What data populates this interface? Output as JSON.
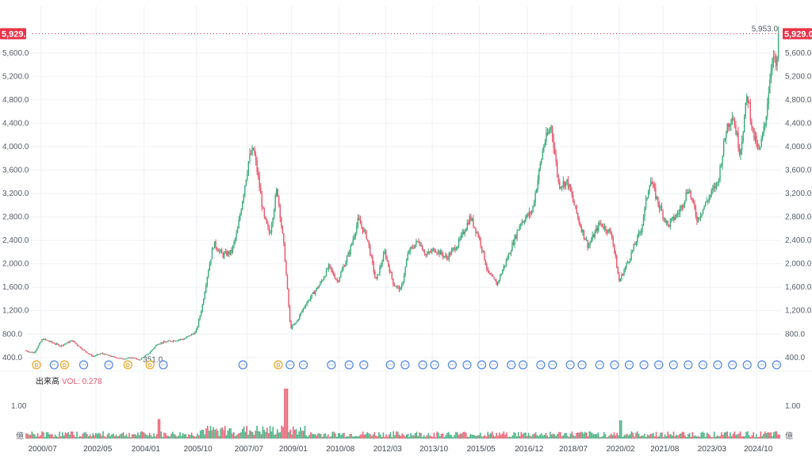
{
  "chart_data": {
    "type": "candlestick",
    "price_axis": {
      "ticks": [
        "400.0",
        "800.0",
        "1,200.0",
        "1,600.0",
        "2,000.0",
        "2,400.0",
        "2,800.0",
        "3,200.0",
        "3,600.0",
        "4,000.0",
        "4,400.0",
        "4,800.0",
        "5,200.0",
        "5,600.0"
      ],
      "tick_values": [
        400,
        800,
        1200,
        1600,
        2000,
        2400,
        2800,
        3200,
        3600,
        4000,
        4400,
        4800,
        5200,
        5600
      ],
      "ylim": [
        330,
        6030
      ]
    },
    "current_price_label": "5,929.0",
    "current_price": 5929.0,
    "high_annotation": "5,953.0",
    "high_value": 5953.0,
    "low_annotation": "351.0",
    "low_value": 351.0,
    "x_ticks": [
      "2000/07",
      "2002/05",
      "2004/01",
      "2005/10",
      "2007/07",
      "2009/01",
      "2010/08",
      "2012/03",
      "2013/10",
      "2015/05",
      "2016/12",
      "2018/07",
      "2020/02",
      "2021/08",
      "2023/03",
      "2024/10"
    ],
    "x_tick_years": [
      2000.5,
      2002.37,
      2004.0,
      2005.77,
      2007.5,
      2009.0,
      2010.6,
      2012.2,
      2013.77,
      2015.37,
      2017.0,
      2018.5,
      2020.1,
      2021.6,
      2023.2,
      2024.77
    ],
    "xlim": [
      2000.0,
      2025.6
    ],
    "price_keypoints": [
      [
        2000.0,
        520
      ],
      [
        2000.3,
        480
      ],
      [
        2000.6,
        720
      ],
      [
        2001.0,
        640
      ],
      [
        2001.2,
        600
      ],
      [
        2001.6,
        690
      ],
      [
        2002.0,
        520
      ],
      [
        2002.3,
        420
      ],
      [
        2002.6,
        470
      ],
      [
        2003.0,
        410
      ],
      [
        2003.3,
        380
      ],
      [
        2003.7,
        400
      ],
      [
        2003.85,
        351
      ],
      [
        2004.2,
        470
      ],
      [
        2004.5,
        640
      ],
      [
        2004.9,
        680
      ],
      [
        2005.4,
        720
      ],
      [
        2005.8,
        840
      ],
      [
        2006.0,
        1250
      ],
      [
        2006.2,
        1850
      ],
      [
        2006.4,
        2350
      ],
      [
        2006.7,
        2150
      ],
      [
        2007.0,
        2200
      ],
      [
        2007.2,
        2550
      ],
      [
        2007.6,
        3800
      ],
      [
        2007.75,
        3950
      ],
      [
        2007.9,
        3500
      ],
      [
        2008.1,
        2800
      ],
      [
        2008.3,
        2500
      ],
      [
        2008.55,
        3300
      ],
      [
        2008.8,
        2200
      ],
      [
        2009.0,
        900
      ],
      [
        2009.2,
        1000
      ],
      [
        2009.5,
        1300
      ],
      [
        2010.0,
        1650
      ],
      [
        2010.3,
        1950
      ],
      [
        2010.6,
        1700
      ],
      [
        2011.0,
        2200
      ],
      [
        2011.3,
        2750
      ],
      [
        2011.6,
        2450
      ],
      [
        2011.9,
        1700
      ],
      [
        2012.2,
        2200
      ],
      [
        2012.5,
        1650
      ],
      [
        2012.75,
        1550
      ],
      [
        2013.0,
        2200
      ],
      [
        2013.35,
        2400
      ],
      [
        2013.6,
        2150
      ],
      [
        2013.9,
        2250
      ],
      [
        2014.3,
        2100
      ],
      [
        2014.7,
        2350
      ],
      [
        2015.1,
        2800
      ],
      [
        2015.4,
        2450
      ],
      [
        2015.7,
        1850
      ],
      [
        2016.0,
        1650
      ],
      [
        2016.4,
        2150
      ],
      [
        2016.8,
        2700
      ],
      [
        2017.2,
        2900
      ],
      [
        2017.6,
        4050
      ],
      [
        2017.85,
        4350
      ],
      [
        2018.1,
        3350
      ],
      [
        2018.4,
        3400
      ],
      [
        2018.8,
        2700
      ],
      [
        2019.1,
        2300
      ],
      [
        2019.5,
        2700
      ],
      [
        2019.9,
        2500
      ],
      [
        2020.15,
        1700
      ],
      [
        2020.5,
        2100
      ],
      [
        2020.9,
        2600
      ],
      [
        2021.2,
        3450
      ],
      [
        2021.5,
        3000
      ],
      [
        2021.8,
        2650
      ],
      [
        2022.2,
        2900
      ],
      [
        2022.5,
        3300
      ],
      [
        2022.8,
        2750
      ],
      [
        2023.1,
        3050
      ],
      [
        2023.5,
        3400
      ],
      [
        2023.8,
        4350
      ],
      [
        2024.0,
        4550
      ],
      [
        2024.25,
        3900
      ],
      [
        2024.5,
        4900
      ],
      [
        2024.7,
        4200
      ],
      [
        2024.9,
        3900
      ],
      [
        2025.1,
        4400
      ],
      [
        2025.35,
        5600
      ],
      [
        2025.5,
        5300
      ],
      [
        2025.55,
        5929
      ]
    ],
    "volume_panel": {
      "title": "出来高",
      "vol_label": "VOL: 0.278",
      "ytick": "1.00",
      "unit_label": "億",
      "vol_peak": 1.38,
      "vol_typical": 0.12
    },
    "event_markers_dividend_years": [
      2000.35,
      2001.3,
      2003.45,
      2004.2,
      2008.55
    ],
    "event_markers_other_years": [
      2000.95,
      2001.95,
      2002.8,
      2004.65,
      2007.35,
      2008.95,
      2009.4,
      2010.35,
      2010.95,
      2011.45,
      2012.35,
      2012.85,
      2013.45,
      2013.85,
      2014.45,
      2014.95,
      2015.45,
      2015.85,
      2016.45,
      2016.85,
      2017.45,
      2017.85,
      2018.45,
      2018.85,
      2019.45,
      2019.95,
      2020.45,
      2020.95,
      2021.45,
      2021.95,
      2022.45,
      2022.95,
      2023.45,
      2023.95,
      2024.45,
      2024.95,
      2025.45
    ],
    "colors": {
      "up": "#3aab7a",
      "down": "#e8566a",
      "price_badge": "#e8334a",
      "dividend_marker": "#e8a526",
      "other_marker": "#4f86e0",
      "grid": "#eef0f3"
    }
  }
}
